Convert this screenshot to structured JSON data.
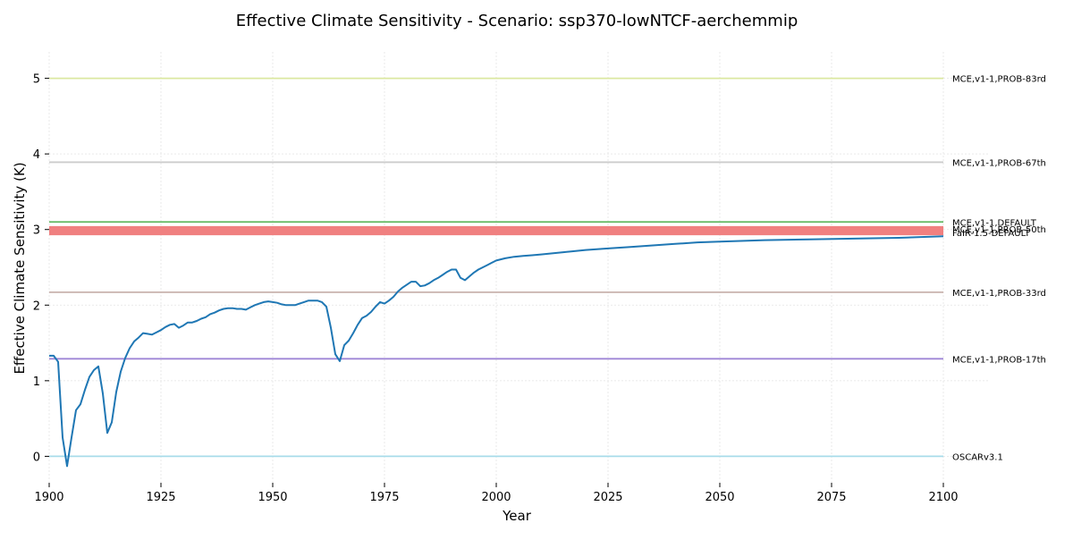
{
  "chart_data": {
    "type": "line",
    "title": "Effective Climate Sensitivity - Scenario: ssp370-lowNTCF-aerchemmip",
    "xlabel": "Year",
    "ylabel": "Effective Climate Sensitivity (K)",
    "xlim": [
      1900,
      2110
    ],
    "ylim": [
      -0.35,
      5.35
    ],
    "x_ticks": [
      1900,
      1925,
      1950,
      1975,
      2000,
      2025,
      2050,
      2075,
      2100
    ],
    "y_ticks": [
      0,
      1,
      2,
      3,
      4,
      5
    ],
    "x_tick_labels": [
      "1900",
      "1925",
      "1950",
      "1975",
      "2000",
      "2025",
      "2050",
      "2075",
      "2100"
    ],
    "y_tick_labels": [
      "0",
      "1",
      "2",
      "3",
      "4",
      "5"
    ],
    "grid": true,
    "legend": "labels at right end of lines",
    "reference_lines": [
      {
        "name": "MCE,v1-1,PROB-83rd",
        "value": 5.0,
        "color": "#dbe8a1"
      },
      {
        "name": "MCE,v1-1,PROB-67th",
        "value": 3.89,
        "color": "#cccccc"
      },
      {
        "name": "MCE,v1-1,DEFAULT",
        "value": 3.1,
        "color": "#5fb65f"
      },
      {
        "name": "MCE,v1-1,PROB-50th",
        "value": 3.01,
        "color": "#f08080"
      },
      {
        "name": "FaIR-1.5-DEFAULT",
        "value": 2.96,
        "color": "#f08080"
      },
      {
        "name": "MCE,v1-1,PROB-33rd",
        "value": 2.17,
        "color": "#c9b3ae"
      },
      {
        "name": "MCE,v1-1,PROB-17th",
        "value": 1.29,
        "color": "#9f86d6"
      },
      {
        "name": "OSCARv3.1",
        "value": 0.0,
        "color": "#a8dcea"
      }
    ],
    "series": [
      {
        "name": "",
        "color": "#1f77b4",
        "x": [
          1900,
          1901,
          1902,
          1903,
          1904,
          1905,
          1906,
          1907,
          1908,
          1909,
          1910,
          1911,
          1912,
          1913,
          1914,
          1915,
          1916,
          1917,
          1918,
          1919,
          1920,
          1921,
          1922,
          1923,
          1924,
          1925,
          1926,
          1927,
          1928,
          1929,
          1930,
          1931,
          1932,
          1933,
          1934,
          1935,
          1936,
          1937,
          1938,
          1939,
          1940,
          1941,
          1942,
          1943,
          1944,
          1945,
          1946,
          1947,
          1948,
          1949,
          1950,
          1951,
          1952,
          1953,
          1954,
          1955,
          1956,
          1957,
          1958,
          1959,
          1960,
          1961,
          1962,
          1963,
          1964,
          1965,
          1966,
          1967,
          1968,
          1969,
          1970,
          1971,
          1972,
          1973,
          1974,
          1975,
          1976,
          1977,
          1978,
          1979,
          1980,
          1981,
          1982,
          1983,
          1984,
          1985,
          1986,
          1987,
          1988,
          1989,
          1990,
          1991,
          1992,
          1993,
          1994,
          1995,
          1996,
          1997,
          1998,
          1999,
          2000,
          2002,
          2004,
          2006,
          2008,
          2010,
          2015,
          2020,
          2025,
          2030,
          2035,
          2040,
          2045,
          2050,
          2060,
          2070,
          2080,
          2090,
          2100
        ],
        "values": [
          1.33,
          1.33,
          1.25,
          0.25,
          -0.13,
          0.25,
          0.61,
          0.69,
          0.88,
          1.05,
          1.14,
          1.19,
          0.83,
          0.31,
          0.45,
          0.85,
          1.12,
          1.3,
          1.43,
          1.52,
          1.57,
          1.63,
          1.62,
          1.61,
          1.64,
          1.67,
          1.71,
          1.74,
          1.75,
          1.7,
          1.73,
          1.77,
          1.77,
          1.79,
          1.82,
          1.84,
          1.88,
          1.9,
          1.93,
          1.95,
          1.96,
          1.96,
          1.95,
          1.95,
          1.94,
          1.97,
          2.0,
          2.02,
          2.04,
          2.05,
          2.04,
          2.03,
          2.01,
          2.0,
          2.0,
          2.0,
          2.02,
          2.04,
          2.06,
          2.06,
          2.06,
          2.04,
          1.98,
          1.7,
          1.35,
          1.26,
          1.47,
          1.53,
          1.63,
          1.74,
          1.83,
          1.86,
          1.91,
          1.98,
          2.04,
          2.02,
          2.06,
          2.11,
          2.18,
          2.23,
          2.27,
          2.31,
          2.31,
          2.25,
          2.26,
          2.29,
          2.33,
          2.36,
          2.4,
          2.44,
          2.47,
          2.47,
          2.36,
          2.33,
          2.38,
          2.43,
          2.47,
          2.5,
          2.53,
          2.56,
          2.59,
          2.62,
          2.64,
          2.65,
          2.66,
          2.67,
          2.7,
          2.73,
          2.75,
          2.77,
          2.79,
          2.81,
          2.83,
          2.84,
          2.86,
          2.87,
          2.88,
          2.89,
          2.91
        ]
      }
    ]
  }
}
